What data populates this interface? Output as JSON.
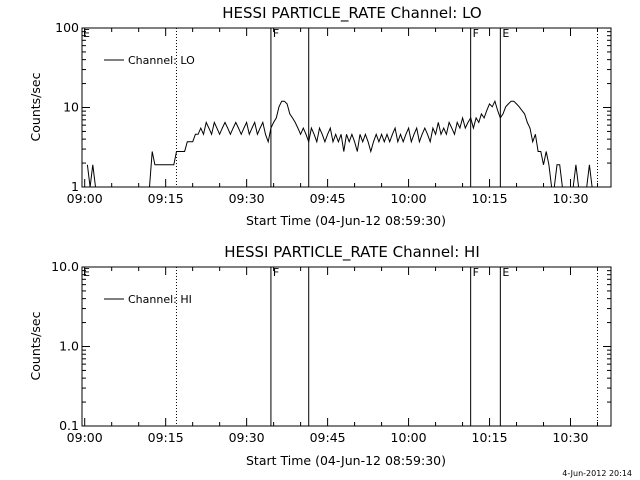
{
  "footer_text": "4-Jun-2012 20:14",
  "chart_data": [
    {
      "type": "line",
      "title": "HESSI PARTICLE_RATE Channel: LO",
      "xlabel": "Start Time (04-Jun-12 08:59:30)",
      "ylabel": "Counts/sec",
      "yscale": "log",
      "xlim": [
        "08:59:30",
        "10:37:30"
      ],
      "ylim": [
        1,
        100
      ],
      "x_ticks": [
        "09:00",
        "09:15",
        "09:30",
        "09:45",
        "10:00",
        "10:15",
        "10:30"
      ],
      "y_ticks": [
        "1",
        "10",
        "100"
      ],
      "legend": {
        "position": "top-left",
        "entries": [
          "Channel: LO"
        ]
      },
      "marker_lines": [
        {
          "time": "09:17:00",
          "style": "dotted",
          "label": ""
        },
        {
          "time": "09:34:30",
          "style": "solid",
          "label": "F"
        },
        {
          "time": "09:41:30",
          "style": "solid",
          "label": ""
        },
        {
          "time": "10:11:30",
          "style": "solid",
          "label": "F"
        },
        {
          "time": "10:17:00",
          "style": "solid",
          "label": "E"
        },
        {
          "time": "10:35:00",
          "style": "dotted",
          "label": ""
        }
      ],
      "corner_labels": [
        {
          "time": "08:59:30",
          "label": "E"
        }
      ],
      "series": [
        {
          "name": "Channel: LO",
          "color": "#000000",
          "points": [
            [
              "09:00:30",
              1.9
            ],
            [
              "09:01:00",
              1.0
            ],
            [
              "09:01:30",
              1.9
            ],
            [
              "09:02:00",
              1.0
            ],
            [
              "09:12:00",
              1.0
            ],
            [
              "09:12:30",
              2.8
            ],
            [
              "09:13:00",
              1.9
            ],
            [
              "09:16:30",
              1.9
            ],
            [
              "09:17:00",
              2.8
            ],
            [
              "09:18:30",
              2.8
            ],
            [
              "09:19:00",
              3.7
            ],
            [
              "09:20:00",
              3.7
            ],
            [
              "09:20:30",
              4.6
            ],
            [
              "09:21:00",
              4.6
            ],
            [
              "09:21:30",
              5.5
            ],
            [
              "09:22:00",
              4.6
            ],
            [
              "09:22:30",
              6.5
            ],
            [
              "09:23:00",
              5.5
            ],
            [
              "09:23:30",
              4.6
            ],
            [
              "09:24:00",
              6.5
            ],
            [
              "09:24:30",
              5.5
            ],
            [
              "09:25:00",
              4.6
            ],
            [
              "09:25:30",
              5.5
            ],
            [
              "09:26:00",
              6.5
            ],
            [
              "09:26:30",
              5.5
            ],
            [
              "09:27:00",
              4.6
            ],
            [
              "09:27:30",
              5.5
            ],
            [
              "09:28:00",
              6.5
            ],
            [
              "09:28:30",
              5.5
            ],
            [
              "09:29:00",
              4.6
            ],
            [
              "09:29:30",
              5.5
            ],
            [
              "09:30:00",
              6.5
            ],
            [
              "09:30:30",
              4.6
            ],
            [
              "09:31:00",
              5.5
            ],
            [
              "09:31:30",
              6.5
            ],
            [
              "09:32:00",
              4.6
            ],
            [
              "09:32:30",
              5.5
            ],
            [
              "09:33:00",
              6.5
            ],
            [
              "09:33:30",
              4.6
            ],
            [
              "09:34:00",
              3.7
            ],
            [
              "09:34:30",
              5.5
            ],
            [
              "09:35:00",
              6.5
            ],
            [
              "09:35:30",
              7.4
            ],
            [
              "09:36:00",
              10.2
            ],
            [
              "09:36:30",
              12.0
            ],
            [
              "09:37:00",
              12.0
            ],
            [
              "09:37:30",
              11.1
            ],
            [
              "09:38:00",
              8.3
            ],
            [
              "09:38:30",
              7.4
            ],
            [
              "09:39:00",
              6.5
            ],
            [
              "09:39:30",
              5.5
            ],
            [
              "09:40:00",
              4.6
            ],
            [
              "09:40:30",
              5.5
            ],
            [
              "09:41:00",
              4.6
            ],
            [
              "09:41:30",
              3.7
            ],
            [
              "09:42:00",
              5.5
            ],
            [
              "09:42:30",
              4.6
            ],
            [
              "09:43:00",
              3.7
            ],
            [
              "09:43:30",
              5.5
            ],
            [
              "09:44:00",
              4.6
            ],
            [
              "09:44:30",
              3.7
            ],
            [
              "09:45:00",
              4.6
            ],
            [
              "09:45:30",
              5.5
            ],
            [
              "09:46:00",
              3.7
            ],
            [
              "09:46:30",
              4.6
            ],
            [
              "09:47:00",
              3.7
            ],
            [
              "09:47:30",
              4.6
            ],
            [
              "09:48:00",
              2.8
            ],
            [
              "09:48:30",
              4.6
            ],
            [
              "09:49:00",
              3.7
            ],
            [
              "09:49:30",
              4.6
            ],
            [
              "09:50:00",
              3.7
            ],
            [
              "09:50:30",
              2.8
            ],
            [
              "09:51:00",
              4.6
            ],
            [
              "09:51:30",
              3.7
            ],
            [
              "09:52:00",
              4.6
            ],
            [
              "09:52:30",
              3.7
            ],
            [
              "09:53:00",
              2.8
            ],
            [
              "09:53:30",
              3.7
            ],
            [
              "09:54:00",
              4.6
            ],
            [
              "09:54:30",
              3.7
            ],
            [
              "09:55:00",
              4.6
            ],
            [
              "09:55:30",
              3.7
            ],
            [
              "09:56:00",
              4.6
            ],
            [
              "09:56:30",
              3.7
            ],
            [
              "09:57:00",
              4.6
            ],
            [
              "09:57:30",
              5.5
            ],
            [
              "09:58:00",
              3.7
            ],
            [
              "09:58:30",
              4.6
            ],
            [
              "09:59:00",
              3.7
            ],
            [
              "09:59:30",
              4.6
            ],
            [
              "10:00:00",
              5.5
            ],
            [
              "10:00:30",
              3.7
            ],
            [
              "10:01:00",
              4.6
            ],
            [
              "10:01:30",
              5.5
            ],
            [
              "10:02:00",
              3.7
            ],
            [
              "10:02:30",
              4.6
            ],
            [
              "10:03:00",
              5.5
            ],
            [
              "10:03:30",
              4.6
            ],
            [
              "10:04:00",
              3.7
            ],
            [
              "10:04:30",
              5.5
            ],
            [
              "10:05:00",
              4.6
            ],
            [
              "10:05:30",
              6.5
            ],
            [
              "10:06:00",
              4.6
            ],
            [
              "10:06:30",
              5.5
            ],
            [
              "10:07:00",
              4.6
            ],
            [
              "10:07:30",
              6.5
            ],
            [
              "10:08:00",
              5.5
            ],
            [
              "10:08:30",
              4.6
            ],
            [
              "10:09:00",
              6.5
            ],
            [
              "10:09:30",
              5.5
            ],
            [
              "10:10:00",
              7.4
            ],
            [
              "10:10:30",
              5.5
            ],
            [
              "10:11:00",
              6.5
            ],
            [
              "10:11:30",
              7.4
            ],
            [
              "10:12:00",
              5.5
            ],
            [
              "10:12:30",
              7.4
            ],
            [
              "10:13:00",
              6.5
            ],
            [
              "10:13:30",
              8.3
            ],
            [
              "10:14:00",
              7.4
            ],
            [
              "10:14:30",
              9.2
            ],
            [
              "10:15:00",
              11.1
            ],
            [
              "10:15:30",
              10.2
            ],
            [
              "10:16:00",
              12.0
            ],
            [
              "10:16:30",
              9.2
            ],
            [
              "10:17:00",
              7.4
            ],
            [
              "10:17:30",
              8.3
            ],
            [
              "10:18:00",
              10.2
            ],
            [
              "10:18:30",
              11.1
            ],
            [
              "10:19:00",
              12.0
            ],
            [
              "10:19:30",
              12.0
            ],
            [
              "10:20:00",
              11.1
            ],
            [
              "10:20:30",
              10.2
            ],
            [
              "10:21:00",
              9.2
            ],
            [
              "10:21:30",
              8.3
            ],
            [
              "10:22:00",
              6.5
            ],
            [
              "10:22:30",
              5.5
            ],
            [
              "10:23:00",
              3.7
            ],
            [
              "10:23:30",
              4.6
            ],
            [
              "10:24:00",
              2.8
            ],
            [
              "10:24:30",
              2.8
            ],
            [
              "10:25:00",
              1.9
            ],
            [
              "10:25:30",
              2.8
            ],
            [
              "10:26:00",
              1.9
            ],
            [
              "10:26:30",
              1.0
            ],
            [
              "10:27:00",
              1.0
            ],
            [
              "10:27:30",
              1.9
            ],
            [
              "10:28:00",
              1.9
            ],
            [
              "10:28:30",
              1.0
            ],
            [
              "10:30:30",
              1.0
            ],
            [
              "10:31:00",
              1.9
            ],
            [
              "10:31:30",
              1.0
            ],
            [
              "10:33:00",
              1.0
            ],
            [
              "10:33:30",
              1.9
            ],
            [
              "10:34:00",
              1.0
            ]
          ]
        }
      ]
    },
    {
      "type": "line",
      "title": "HESSI PARTICLE_RATE Channel: HI",
      "xlabel": "Start Time (04-Jun-12 08:59:30)",
      "ylabel": "Counts/sec",
      "yscale": "log",
      "xlim": [
        "08:59:30",
        "10:37:30"
      ],
      "ylim": [
        0.1,
        10
      ],
      "x_ticks": [
        "09:00",
        "09:15",
        "09:30",
        "09:45",
        "10:00",
        "10:15",
        "10:30"
      ],
      "y_ticks": [
        "0.1",
        "1.0",
        "10.0"
      ],
      "legend": {
        "position": "top-left",
        "entries": [
          "Channel: HI"
        ]
      },
      "marker_lines": [
        {
          "time": "09:17:00",
          "style": "dotted",
          "label": ""
        },
        {
          "time": "09:34:30",
          "style": "solid",
          "label": "F"
        },
        {
          "time": "09:41:30",
          "style": "solid",
          "label": ""
        },
        {
          "time": "10:11:30",
          "style": "solid",
          "label": "F"
        },
        {
          "time": "10:17:00",
          "style": "solid",
          "label": "E"
        },
        {
          "time": "10:35:00",
          "style": "dotted",
          "label": ""
        }
      ],
      "corner_labels": [
        {
          "time": "08:59:30",
          "label": "E"
        }
      ],
      "series": [
        {
          "name": "Channel: HI",
          "color": "#000000",
          "points": []
        }
      ]
    }
  ]
}
